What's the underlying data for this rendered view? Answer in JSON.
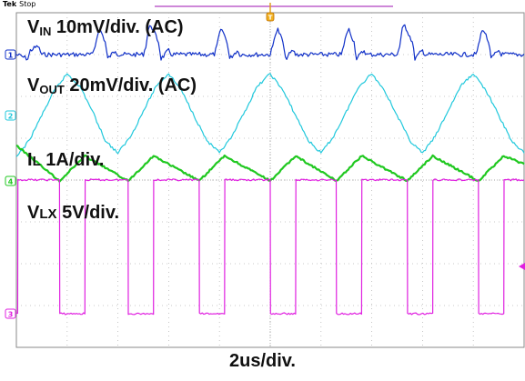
{
  "scope": {
    "brand": "Tek",
    "status": "Stop",
    "timebase_label": "2us/div.",
    "grid": "on",
    "divisions": {
      "x": 10,
      "y": 8
    }
  },
  "labels": {
    "vin": {
      "name": "V",
      "sub": "IN",
      "scale": " 10mV/div. (AC)"
    },
    "vout": {
      "name": "V",
      "sub": "OUT",
      "scale": " 20mV/div. (AC)"
    },
    "il": {
      "name": "I",
      "sub": "L",
      "scale": " 1A/div."
    },
    "vlx": {
      "name": "V",
      "sub": "LX",
      "scale": " 5V/div."
    }
  },
  "chart_data": {
    "type": "line",
    "title": "",
    "xlabel": "2us/div.",
    "ylabel": "",
    "x_unit": "us",
    "x_range": [
      0,
      20
    ],
    "channel_markers": [
      "1",
      "2",
      "4",
      "3"
    ],
    "series": [
      {
        "name": "VIN 10mV/div. (AC)",
        "channel": "1",
        "color": "#1030c8",
        "unit": "div",
        "x": [
          0,
          0.45,
          0.55,
          0.85,
          1.0,
          3.0,
          3.1,
          3.2,
          3.3,
          3.5,
          3.6,
          3.9,
          4.0,
          5.0,
          5.1,
          5.2,
          5.3,
          5.6,
          5.7,
          6.0,
          6.1,
          7.8,
          7.9,
          8.0,
          8.1,
          8.3,
          8.4,
          8.7,
          8.8,
          10.0,
          10.1,
          10.2,
          10.3,
          10.5,
          10.6,
          10.9,
          11.0,
          12.8,
          12.9,
          13.0,
          13.1,
          13.3,
          13.4,
          13.7,
          13.8,
          15.0,
          15.1,
          15.2,
          15.3,
          15.6,
          15.7,
          16.0,
          16.1,
          18.1,
          18.2,
          18.3,
          18.4,
          18.6,
          18.7,
          19.0,
          19.1,
          20.0
        ],
        "y": [
          3.3,
          3.2,
          3.4,
          3.5,
          3.3,
          3.3,
          3.5,
          3.8,
          3.9,
          3.6,
          3.2,
          3.4,
          3.3,
          3.3,
          3.5,
          3.9,
          4.0,
          3.6,
          3.2,
          3.4,
          3.3,
          3.3,
          3.5,
          3.8,
          3.9,
          3.6,
          3.2,
          3.4,
          3.3,
          3.3,
          3.5,
          3.8,
          3.9,
          3.6,
          3.2,
          3.4,
          3.3,
          3.3,
          3.5,
          3.8,
          3.9,
          3.6,
          3.2,
          3.4,
          3.3,
          3.3,
          3.5,
          3.9,
          4.0,
          3.6,
          3.2,
          3.4,
          3.3,
          3.3,
          3.5,
          3.8,
          3.9,
          3.6,
          3.2,
          3.4,
          3.3,
          3.3
        ]
      },
      {
        "name": "VOUT 20mV/div. (AC)",
        "channel": "2",
        "color": "#20c8dc",
        "unit": "div",
        "x": [
          0,
          0.5,
          1.0,
          1.5,
          2.0,
          2.5,
          3.0,
          3.5,
          4.0,
          4.5,
          5.0,
          5.5,
          6.0,
          6.5,
          7.0,
          7.5,
          8.0,
          8.5,
          9.0,
          9.5,
          10.0,
          10.5,
          11.0,
          11.5,
          12.0,
          12.5,
          13.0,
          13.5,
          14.0,
          14.5,
          15.0,
          15.5,
          16.0,
          16.5,
          17.0,
          17.5,
          18.0,
          18.5,
          19.0,
          19.5,
          20.0
        ],
        "y": [
          1.5,
          1.9,
          2.5,
          3.1,
          3.5,
          3.2,
          2.6,
          1.9,
          1.6,
          2.0,
          2.6,
          3.2,
          3.5,
          3.1,
          2.5,
          1.9,
          1.6,
          2.0,
          2.6,
          3.2,
          3.5,
          3.1,
          2.5,
          1.9,
          1.6,
          2.0,
          2.6,
          3.2,
          3.5,
          3.1,
          2.5,
          1.9,
          1.6,
          2.0,
          2.6,
          3.2,
          3.5,
          3.1,
          2.5,
          1.9,
          1.6
        ]
      },
      {
        "name": "IL 1A/div.",
        "channel": "4",
        "color": "#20c820",
        "unit": "div",
        "x": [
          0,
          1.7,
          2.7,
          4.4,
          5.4,
          7.2,
          8.2,
          10.0,
          11.0,
          12.6,
          13.6,
          15.4,
          16.4,
          18.2,
          19.2,
          20.0
        ],
        "y": [
          0.85,
          0.0,
          0.6,
          0.0,
          0.6,
          0.0,
          0.6,
          0.0,
          0.6,
          0.0,
          0.6,
          0.0,
          0.6,
          0.0,
          0.6,
          0.4
        ]
      },
      {
        "name": "VLX 5V/div.",
        "channel": "3",
        "color": "#e020e0",
        "unit": "div",
        "x": [
          0,
          0.05,
          0.06,
          1.7,
          1.71,
          2.7,
          2.71,
          4.4,
          4.41,
          5.4,
          5.41,
          7.2,
          7.21,
          8.2,
          8.21,
          10.0,
          10.01,
          11.0,
          11.01,
          12.6,
          12.61,
          13.6,
          13.61,
          15.4,
          15.41,
          16.4,
          16.41,
          18.2,
          18.21,
          19.2,
          19.21,
          20.0
        ],
        "y": [
          0.0,
          0.0,
          3.2,
          3.2,
          0.0,
          0.0,
          3.2,
          3.2,
          0.0,
          0.0,
          3.2,
          3.2,
          0.0,
          0.0,
          3.2,
          3.2,
          0.0,
          0.0,
          3.2,
          3.2,
          0.0,
          0.0,
          3.2,
          3.2,
          0.0,
          0.0,
          3.2,
          3.2,
          0.0,
          0.0,
          3.2,
          3.2
        ]
      }
    ]
  }
}
